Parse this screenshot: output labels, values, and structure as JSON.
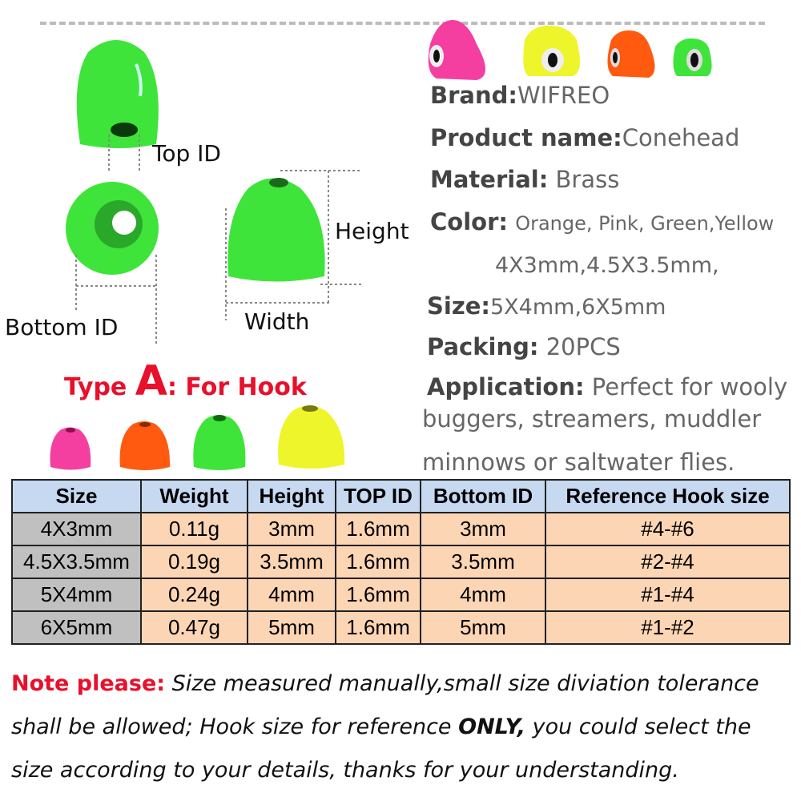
{
  "diagram": {
    "top_id_label": "Top ID",
    "bottom_id_label": "Bottom ID",
    "height_label": "Height",
    "width_label": "Width",
    "type_prefix": "Type ",
    "type_letter": "A",
    "type_suffix": ": For Hook"
  },
  "specs": [
    {
      "label": "Brand:",
      "value": "WIFREO"
    },
    {
      "label": "Product name:",
      "value": "Conehead"
    },
    {
      "label": "Material:",
      "value": "Brass"
    },
    {
      "label": "Color:",
      "value": "Orange, Pink, Green,Yellow"
    },
    {
      "label": "Size:",
      "value_line1": "4X3mm,4.5X3.5mm,",
      "value": "5X4mm,6X5mm"
    },
    {
      "label": "Packing:",
      "value": "20PCS"
    },
    {
      "label": "Application:",
      "value": "Perfect for wooly",
      "value_line2": "buggers, streamers, muddler",
      "value_line3": "minnows or saltwater flies."
    }
  ],
  "table": {
    "headers": [
      "Size",
      "Weight",
      "Height",
      "TOP ID",
      "Bottom ID",
      "Reference Hook size"
    ],
    "rows": [
      [
        "4X3mm",
        "0.11g",
        "3mm",
        "1.6mm",
        "3mm",
        "#4-#6"
      ],
      [
        "4.5X3.5mm",
        "0.19g",
        "3.5mm",
        "1.6mm",
        "3.5mm",
        "#2-#4"
      ],
      [
        "5X4mm",
        "0.24g",
        "4mm",
        "1.6mm",
        "4mm",
        "#1-#4"
      ],
      [
        "6X5mm",
        "0.47g",
        "5mm",
        "1.6mm",
        "5mm",
        "#1-#2"
      ]
    ]
  },
  "note": {
    "label": "Note please:",
    "line1": " Size measured manually,small size diviation tolerance",
    "line2a": "shall be allowed; Hook size for reference ",
    "line2b": "ONLY,",
    "line2c": " you could select the",
    "line3": "size according to your details, thanks for your understanding."
  },
  "colors": {
    "pink": "#f43fa0",
    "orange": "#ff5a10",
    "green": "#3ee43a",
    "yellow": "#eef52a",
    "accent_red": "#e8102b"
  }
}
